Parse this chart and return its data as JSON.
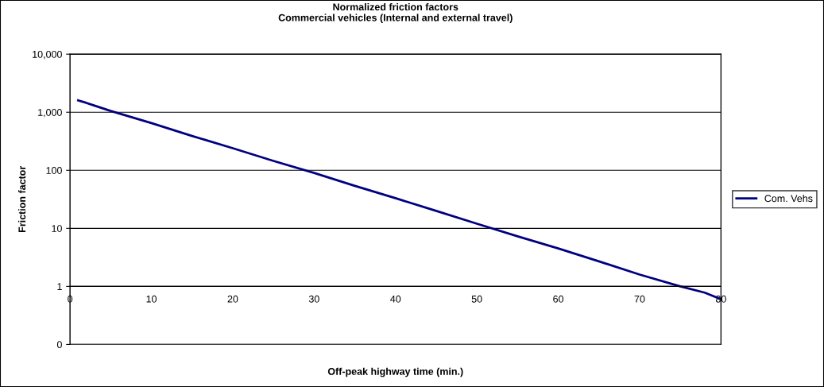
{
  "chart_data": {
    "type": "line",
    "title": "Normalized friction factors\nCommercial vehicles (Internal and external travel)",
    "xlabel": "Off-peak highway time (min.)",
    "ylabel": "Friction factor",
    "x": [
      1,
      2,
      3,
      5,
      10,
      15,
      20,
      25,
      30,
      35,
      40,
      45,
      50,
      55,
      60,
      65,
      70,
      75,
      78,
      80
    ],
    "series": [
      {
        "name": "Com. Vehs",
        "color": "#000080",
        "values": [
          1600,
          1450,
          1300,
          1050,
          650,
          390,
          240,
          145,
          90,
          54,
          33,
          20,
          12,
          7.3,
          4.5,
          2.7,
          1.6,
          1.0,
          0.78,
          0.6
        ]
      }
    ],
    "log": "y",
    "xlim": [
      0,
      80
    ],
    "xticks": [
      0,
      10,
      20,
      30,
      40,
      50,
      60,
      70,
      80
    ],
    "ylim": [
      0.1,
      10000
    ],
    "yticks": [
      {
        "value": 0.1,
        "label": "0"
      },
      1,
      10,
      100,
      {
        "value": 1000,
        "label": "1,000"
      },
      {
        "value": 10000,
        "label": "10,000"
      }
    ],
    "grid": "y",
    "legend": "right",
    "marker": "none",
    "line_style": "solid"
  }
}
